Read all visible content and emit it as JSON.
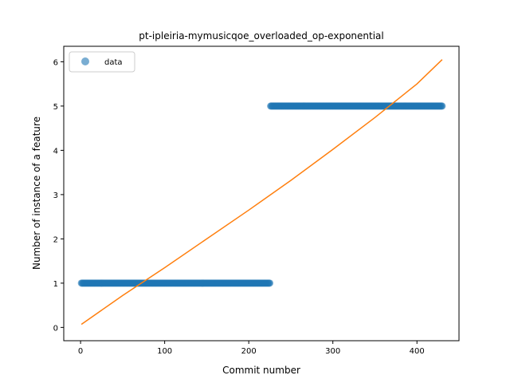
{
  "chart_data": {
    "type": "scatter",
    "title": "pt-ipleiria-mymusicqoe_overloaded_op-exponential",
    "xlabel": "Commit number",
    "ylabel": "Number of instance of a feature",
    "xlim": [
      -20,
      450
    ],
    "ylim": [
      -0.3,
      6.35
    ],
    "xticks": [
      0,
      100,
      200,
      300,
      400
    ],
    "yticks": [
      0,
      1,
      2,
      3,
      4,
      5,
      6
    ],
    "grid": false,
    "legend": {
      "placement": "upper-left",
      "entries": [
        "data"
      ]
    },
    "series": [
      {
        "name": "data",
        "kind": "scatter",
        "color": "#1f77b4",
        "alpha": 0.6,
        "segments": [
          {
            "x_start": 1,
            "x_end": 225,
            "y": 1
          },
          {
            "x_start": 226,
            "x_end": 430,
            "y": 5
          }
        ]
      },
      {
        "kind": "line",
        "color": "#ff7f0e",
        "x": [
          1,
          50,
          100,
          150,
          200,
          250,
          300,
          350,
          400,
          430
        ],
        "y": [
          0.07,
          0.72,
          1.35,
          2.0,
          2.65,
          3.32,
          4.02,
          4.74,
          5.5,
          6.05
        ]
      }
    ]
  }
}
